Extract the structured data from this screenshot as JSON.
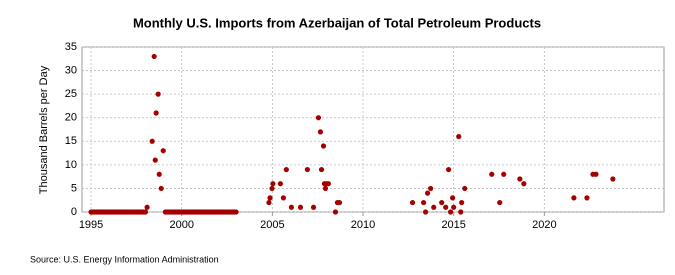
{
  "chart_data": {
    "type": "scatter",
    "title": "Monthly U.S. Imports from Azerbaijan of Total Petroleum Products",
    "y_label": "Thousand Barrels per Day",
    "source": "Source: U.S. Energy Information Administration",
    "color": "#a50000",
    "grid": true,
    "xlim": [
      1994.5,
      2026.6
    ],
    "ylim": [
      0,
      35
    ],
    "xticks": [
      1995,
      2000,
      2005,
      2010,
      2015,
      2020
    ],
    "yticks": [
      0,
      5,
      10,
      15,
      20,
      25,
      30,
      35
    ],
    "x": [
      1995.0,
      1995.1,
      1995.2,
      1995.3,
      1995.4,
      1995.5,
      1995.6,
      1995.7,
      1995.8,
      1995.9,
      1996.0,
      1996.1,
      1996.2,
      1996.3,
      1996.4,
      1996.5,
      1996.6,
      1996.7,
      1996.8,
      1996.9,
      1997.0,
      1997.1,
      1997.2,
      1997.3,
      1997.4,
      1997.5,
      1997.6,
      1997.7,
      1997.8,
      1997.9,
      1998.0,
      1998.09,
      1998.37,
      1998.48,
      1998.54,
      1998.59,
      1998.7,
      1998.76,
      1998.87,
      1998.98,
      1999.1,
      1999.2,
      1999.3,
      1999.4,
      1999.5,
      1999.6,
      1999.7,
      1999.8,
      1999.9,
      2000.0,
      2000.1,
      2000.2,
      2000.3,
      2000.4,
      2000.5,
      2000.6,
      2000.7,
      2000.8,
      2000.9,
      2001.0,
      2001.1,
      2001.2,
      2001.3,
      2001.4,
      2001.5,
      2001.6,
      2001.7,
      2001.8,
      2001.9,
      2002.0,
      2002.1,
      2002.2,
      2002.3,
      2002.4,
      2002.5,
      2002.6,
      2002.7,
      2002.8,
      2002.9,
      2003.0,
      2004.81,
      2004.87,
      2004.98,
      2005.03,
      2005.44,
      2005.61,
      2005.77,
      2006.05,
      2006.55,
      2006.93,
      2007.27,
      2007.54,
      2007.65,
      2007.71,
      2007.82,
      2007.87,
      2007.93,
      2007.98,
      2008.09,
      2008.48,
      2008.59,
      2008.7,
      2012.73,
      2013.34,
      2013.45,
      2013.56,
      2013.73,
      2013.9,
      2014.34,
      2014.56,
      2014.72,
      2014.83,
      2014.94,
      2015.0,
      2015.28,
      2015.39,
      2015.44,
      2015.61,
      2017.1,
      2017.54,
      2017.76,
      2018.65,
      2018.87,
      2021.63,
      2022.35,
      2022.68,
      2022.85,
      2023.78
    ],
    "values": [
      0,
      0,
      0,
      0,
      0,
      0,
      0,
      0,
      0,
      0,
      0,
      0,
      0,
      0,
      0,
      0,
      0,
      0,
      0,
      0,
      0,
      0,
      0,
      0,
      0,
      0,
      0,
      0,
      0,
      0,
      0,
      1,
      15,
      33,
      11,
      21,
      25,
      8,
      5,
      13,
      0,
      0,
      0,
      0,
      0,
      0,
      0,
      0,
      0,
      0,
      0,
      0,
      0,
      0,
      0,
      0,
      0,
      0,
      0,
      0,
      0,
      0,
      0,
      0,
      0,
      0,
      0,
      0,
      0,
      0,
      0,
      0,
      0,
      0,
      0,
      0,
      0,
      0,
      0,
      0,
      2,
      3,
      5,
      6,
      6,
      3,
      9,
      1,
      1,
      9,
      1,
      20,
      17,
      9,
      14,
      6,
      5,
      6,
      6,
      0,
      2,
      2,
      2,
      2,
      0,
      4,
      5,
      1,
      2,
      1,
      9,
      0,
      3,
      1,
      16,
      0,
      2,
      5,
      8,
      2,
      8,
      7,
      6,
      3,
      3,
      8,
      8,
      7
    ]
  }
}
